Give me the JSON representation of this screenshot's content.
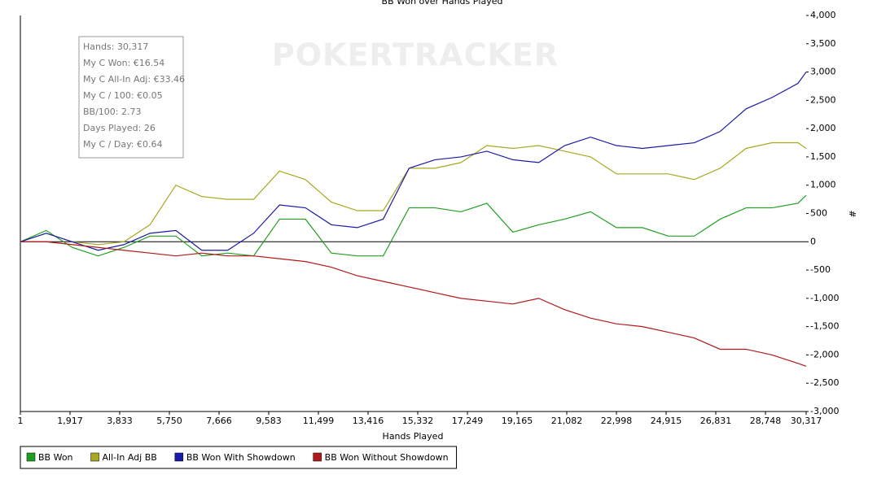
{
  "chart_data": {
    "type": "line",
    "title": "BB Won over Hands Played",
    "x_label": "Hands Played",
    "y_label": "#",
    "watermark": "POKERTRACKER",
    "tooltip": [
      "Hands: 30,317",
      "My C Won: €16.54",
      "My C All-In Adj: €33.46",
      "My C / 100: €0.05",
      "BB/100: 2.73",
      "Days Played: 26",
      "My C / Day: €0.64"
    ],
    "x": [
      1,
      1000,
      2000,
      3000,
      4000,
      5000,
      6000,
      7000,
      8000,
      9000,
      10000,
      11000,
      12000,
      13000,
      14000,
      15000,
      16000,
      17000,
      18000,
      19000,
      20000,
      21000,
      22000,
      23000,
      24000,
      25000,
      26000,
      27000,
      28000,
      29000,
      30000,
      30317
    ],
    "series": [
      {
        "name": "BB Won",
        "color": "#1fa01f",
        "values": [
          0,
          200,
          -100,
          -250,
          -100,
          100,
          100,
          -250,
          -200,
          -250,
          400,
          400,
          -200,
          -250,
          -250,
          600,
          600,
          530,
          680,
          170,
          300,
          400,
          530,
          250,
          250,
          100,
          100,
          400,
          600,
          600,
          680,
          820
        ]
      },
      {
        "name": "All-In Adj BB",
        "color": "#a8a820",
        "values": [
          0,
          150,
          0,
          -50,
          0,
          300,
          1000,
          800,
          750,
          750,
          1250,
          1100,
          700,
          550,
          550,
          1300,
          1300,
          1400,
          1700,
          1650,
          1700,
          1600,
          1500,
          1200,
          1200,
          1200,
          1100,
          1300,
          1650,
          1750,
          1750,
          1650
        ]
      },
      {
        "name": "BB Won With Showdown",
        "color": "#1a1aa8",
        "values": [
          0,
          150,
          0,
          -150,
          -50,
          150,
          200,
          -150,
          -150,
          150,
          650,
          600,
          300,
          250,
          400,
          1300,
          1450,
          1500,
          1600,
          1450,
          1400,
          1700,
          1850,
          1700,
          1650,
          1700,
          1750,
          1950,
          2350,
          2550,
          2800,
          3000
        ]
      },
      {
        "name": "BB Won Without Showdown",
        "color": "#b01a1a",
        "values": [
          0,
          0,
          -50,
          -100,
          -150,
          -200,
          -250,
          -200,
          -250,
          -250,
          -300,
          -350,
          -450,
          -600,
          -700,
          -800,
          -900,
          -1000,
          -1050,
          -1100,
          -1000,
          -1200,
          -1350,
          -1450,
          -1500,
          -1600,
          -1700,
          -1900,
          -1900,
          -2000,
          -2150,
          -2200
        ]
      }
    ],
    "xlim": [
      1,
      30317
    ],
    "xticks": [
      1,
      {
        "value": 1917,
        "label": "1,917"
      },
      {
        "value": 3833,
        "label": "3,833"
      },
      {
        "value": 5750,
        "label": "5,750"
      },
      {
        "value": 7666,
        "label": "7,666"
      },
      {
        "value": 9583,
        "label": "9,583"
      },
      {
        "value": 11499,
        "label": "11,499"
      },
      {
        "value": 13416,
        "label": "13,416"
      },
      {
        "value": 15332,
        "label": "15,332"
      },
      {
        "value": 17249,
        "label": "17,249"
      },
      {
        "value": 19165,
        "label": "19,165"
      },
      {
        "value": 21082,
        "label": "21,082"
      },
      {
        "value": 22998,
        "label": "22,998"
      },
      {
        "value": 24915,
        "label": "24,915"
      },
      {
        "value": 26831,
        "label": "26,831"
      },
      {
        "value": 28748,
        "label": "28,748"
      },
      {
        "value": 30317,
        "label": "30,317"
      }
    ],
    "ylim": [
      -3000,
      4000
    ],
    "yticks": [
      {
        "value": -3000,
        "label": "-3,000"
      },
      {
        "value": -2500,
        "label": "-2,500"
      },
      {
        "value": -2000,
        "label": "-2,000"
      },
      {
        "value": -1500,
        "label": "-1,500"
      },
      {
        "value": -1000,
        "label": "-1,000"
      },
      -500,
      0,
      500,
      {
        "value": 1000,
        "label": "1,000"
      },
      {
        "value": 1500,
        "label": "1,500"
      },
      {
        "value": 2000,
        "label": "2,000"
      },
      {
        "value": 2500,
        "label": "2,500"
      },
      {
        "value": 3000,
        "label": "3,000"
      },
      {
        "value": 3500,
        "label": "3,500"
      },
      {
        "value": 4000,
        "label": "4,000"
      }
    ],
    "grid": false,
    "zero_line": true,
    "legend": "bottom-left"
  }
}
